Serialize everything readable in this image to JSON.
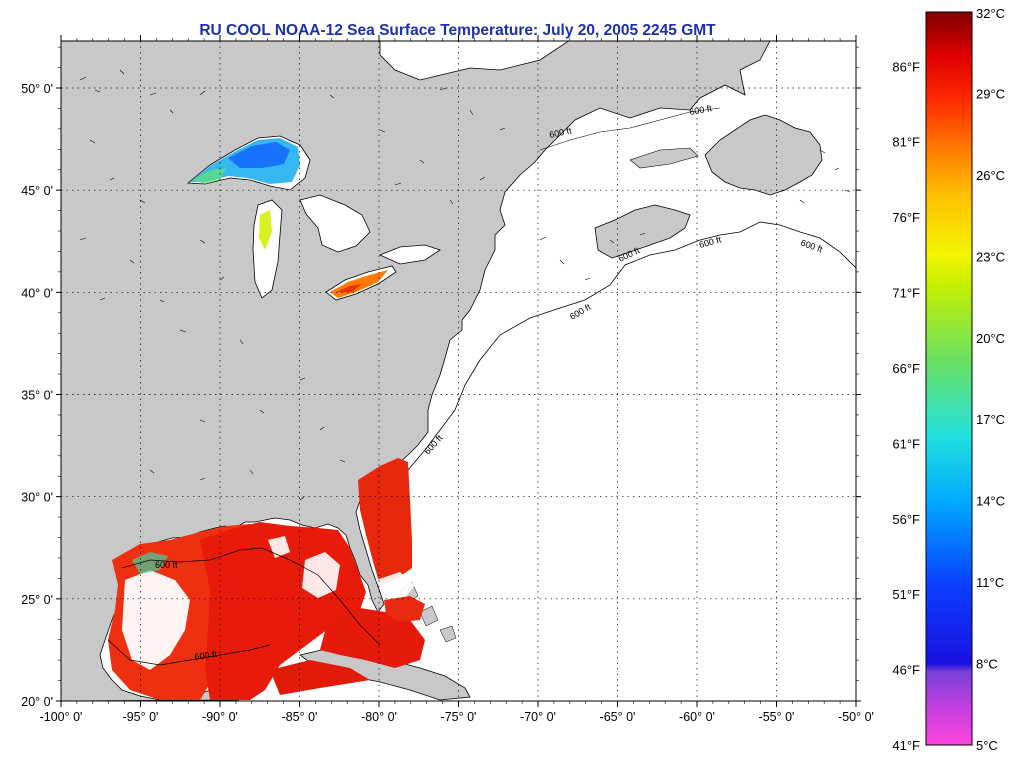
{
  "title": "RU COOL  NOAA-12  Sea Surface Temperature:  July 20, 2005 2245 GMT",
  "map": {
    "lon_range": [
      -100,
      -50
    ],
    "lat_range": [
      20,
      52.3
    ],
    "lat_labels": [
      "20° 0'",
      "25° 0'",
      "30° 0'",
      "35° 0'",
      "40° 0'",
      "45° 0'",
      "50° 0'"
    ],
    "lat_values": [
      20,
      25,
      30,
      35,
      40,
      45,
      50
    ],
    "lon_labels": [
      "-100° 0'",
      "-95° 0'",
      "-90° 0'",
      "-85° 0'",
      "-80° 0'",
      "-75° 0'",
      "-70° 0'",
      "-65° 0'",
      "-60° 0'",
      "-55° 0'",
      "-50° 0'"
    ],
    "lon_values": [
      -100,
      -95,
      -90,
      -85,
      -80,
      -75,
      -70,
      -65,
      -60,
      -55,
      -50
    ],
    "contour_label": "600 ft",
    "land_color": "#c8c8c8",
    "water_color": "#ffffff",
    "grid": "dotted"
  },
  "colorbar": {
    "fahrenheit_labels": [
      "86°F",
      "81°F",
      "76°F",
      "71°F",
      "66°F",
      "61°F",
      "56°F",
      "51°F",
      "46°F",
      "41°F"
    ],
    "celsius_labels": [
      "32°C",
      "29°C",
      "26°C",
      "23°C",
      "20°C",
      "17°C",
      "14°C",
      "11°C",
      "8°C",
      "5°C"
    ],
    "range_c": [
      5,
      32
    ],
    "colors": [
      "#ff44dd",
      "#8a3fd6",
      "#0a0adf",
      "#00a0ff",
      "#22e0e0",
      "#66e066",
      "#e6f200",
      "#ffcc00",
      "#ff8c00",
      "#ff2a00",
      "#e00000",
      "#800000"
    ]
  }
}
